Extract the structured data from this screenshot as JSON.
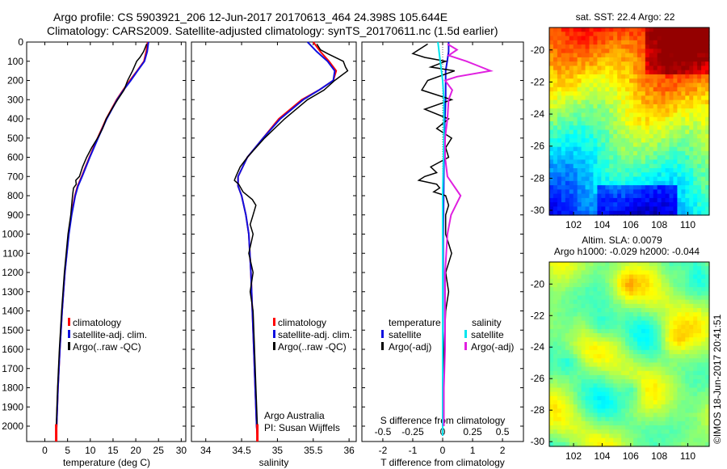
{
  "header": {
    "line1": "Argo profile: CS 5903921_206 12-Jun-2017 20170613_464 24.398S 105.644E",
    "line2": "Climatology: CARS2009. Satellite-adjusted climatology: synTS_20170611.nc (1.5d earlier)"
  },
  "colors": {
    "climatology": "#ff0000",
    "satellite": "#1010e0",
    "argo": "#000000",
    "satellite_s": "#00e5ee",
    "argo_s": "#e020e0"
  },
  "chart_data": [
    {
      "id": "temperature",
      "type": "line",
      "xlabel": "temperature (deg C)",
      "xlim": [
        -4,
        31
      ],
      "xticks": [
        0,
        5,
        10,
        15,
        20,
        25,
        30
      ],
      "ylim": [
        2080,
        0
      ],
      "yticks": [
        0,
        100,
        200,
        300,
        400,
        500,
        600,
        700,
        800,
        900,
        1000,
        1100,
        1200,
        1300,
        1400,
        1500,
        1600,
        1700,
        1800,
        1900,
        2000
      ],
      "legend": [
        "climatology",
        "satellite-adj. clim.",
        "Argo(..raw -QC)"
      ],
      "series": [
        {
          "name": "climatology",
          "color_key": "climatology",
          "depth": [
            0,
            50,
            100,
            150,
            200,
            250,
            300,
            400,
            500,
            600,
            700,
            750,
            800,
            900,
            1000,
            1200,
            1400,
            1600,
            1800,
            2000,
            2050
          ],
          "values": [
            22.6,
            22.3,
            21.8,
            20.3,
            18.7,
            17.2,
            15.8,
            13.5,
            11.6,
            9.8,
            8.1,
            7.2,
            6.6,
            5.8,
            5.2,
            4.4,
            3.8,
            3.3,
            2.9,
            2.6,
            2.5
          ]
        },
        {
          "name": "satellite-adj. clim.",
          "color_key": "satellite",
          "depth": [
            0,
            50,
            100,
            150,
            200,
            250,
            300,
            400,
            500,
            600,
            700,
            750,
            800,
            900,
            1000,
            1200,
            1400,
            1600,
            1800,
            2000,
            2050
          ],
          "values": [
            22.8,
            22.5,
            21.9,
            20.4,
            18.9,
            17.3,
            15.9,
            13.6,
            11.7,
            9.9,
            8.2,
            7.3,
            6.7,
            5.9,
            5.3,
            4.4,
            3.8,
            3.3,
            2.9,
            2.6,
            2.5
          ]
        },
        {
          "name": "Argo(..raw -QC)",
          "color_key": "argo",
          "depth": [
            10,
            50,
            80,
            100,
            150,
            200,
            250,
            300,
            350,
            400,
            450,
            500,
            550,
            600,
            650,
            700,
            720,
            740,
            760,
            800,
            900,
            1000,
            1200,
            1400,
            1600,
            1800,
            2000,
            2020
          ],
          "values": [
            22.4,
            21.7,
            20.9,
            20.2,
            19.3,
            18.2,
            17.4,
            16.0,
            14.7,
            13.5,
            12.7,
            11.6,
            10.3,
            9.2,
            8.3,
            7.6,
            6.8,
            6.9,
            6.3,
            6.1,
            5.7,
            5.1,
            4.3,
            3.7,
            3.2,
            2.8,
            2.5,
            2.5
          ]
        }
      ]
    },
    {
      "id": "salinity",
      "type": "line",
      "xlabel": "salinity",
      "xlim": [
        33.8,
        36.1
      ],
      "xticks": [
        34,
        34.5,
        35,
        35.5,
        36
      ],
      "xtick_labels": [
        "34",
        "34.5",
        "35",
        "35.5",
        "36"
      ],
      "ylim": [
        2080,
        0
      ],
      "legend": [
        "climatology",
        "satellite-adj. clim.",
        "Argo(..raw -QC)"
      ],
      "annotations": [
        "Argo Australia",
        "PI: Susan Wijffels"
      ],
      "series": [
        {
          "name": "climatology",
          "color_key": "climatology",
          "depth": [
            0,
            50,
            100,
            150,
            200,
            250,
            300,
            400,
            500,
            600,
            700,
            750,
            800,
            900,
            1000,
            1200,
            1400,
            1600,
            1800,
            2000,
            2050
          ],
          "values": [
            35.5,
            35.6,
            35.72,
            35.82,
            35.78,
            35.58,
            35.34,
            35.02,
            34.8,
            34.58,
            34.45,
            34.45,
            34.5,
            34.56,
            34.6,
            34.63,
            34.65,
            34.67,
            34.69,
            34.71,
            34.72
          ]
        },
        {
          "name": "satellite-adj. clim.",
          "color_key": "satellite",
          "depth": [
            0,
            50,
            100,
            150,
            200,
            250,
            300,
            400,
            500,
            600,
            700,
            750,
            800,
            900,
            1000,
            1200,
            1400,
            1600,
            1800,
            2000,
            2050
          ],
          "values": [
            35.42,
            35.55,
            35.7,
            35.8,
            35.78,
            35.58,
            35.36,
            35.04,
            34.8,
            34.58,
            34.45,
            34.45,
            34.5,
            34.56,
            34.6,
            34.63,
            34.65,
            34.67,
            34.69,
            34.71,
            34.72
          ]
        },
        {
          "name": "Argo(..raw -QC)",
          "color_key": "argo",
          "depth": [
            10,
            40,
            60,
            100,
            130,
            150,
            200,
            250,
            300,
            400,
            500,
            600,
            650,
            700,
            720,
            740,
            780,
            820,
            850,
            900,
            950,
            1000,
            1100,
            1200,
            1300,
            1400,
            1600,
            1800,
            2000,
            2020
          ],
          "values": [
            35.55,
            35.6,
            35.7,
            35.92,
            35.95,
            35.98,
            35.8,
            35.65,
            35.42,
            35.1,
            34.82,
            34.58,
            34.48,
            34.42,
            34.4,
            34.46,
            34.52,
            34.65,
            34.7,
            34.66,
            34.62,
            34.66,
            34.6,
            34.66,
            34.62,
            34.66,
            34.68,
            34.7,
            34.72,
            34.72
          ]
        }
      ]
    },
    {
      "id": "differences",
      "type": "line",
      "xlabel": "T difference from climatology",
      "xlabel_top": "S difference from climatology",
      "xlim": [
        -2.7,
        2.7
      ],
      "xticks": [
        -2,
        -1,
        0,
        1,
        2
      ],
      "xticks_top": [
        -0.5,
        -0.25,
        0,
        0.25,
        0.5
      ],
      "xtick_labels_top": [
        "-0.5",
        "-0.25",
        "0",
        "0.25",
        "0.5"
      ],
      "ylim": [
        2080,
        0
      ],
      "legend_titles": [
        "temperature",
        "salinity"
      ],
      "legend": [
        "satellite",
        "Argo(-adj)",
        "satellite",
        "Argo(-adj)"
      ],
      "series": [
        {
          "name": "T satellite",
          "color_key": "satellite",
          "depth": [
            0,
            50,
            100,
            150,
            200,
            300,
            500,
            1000,
            2050
          ],
          "values": [
            0.2,
            0.2,
            0.15,
            0.1,
            0.1,
            0.1,
            0.05,
            0.02,
            0.0
          ]
        },
        {
          "name": "T Argo(-adj)",
          "color_key": "argo",
          "depth": [
            10,
            40,
            60,
            80,
            100,
            130,
            150,
            200,
            250,
            300,
            350,
            400,
            450,
            500,
            550,
            600,
            650,
            680,
            700,
            720,
            740,
            760,
            780,
            800,
            850,
            900,
            1000,
            1100,
            1200,
            1300,
            1400,
            1600,
            1800,
            2000
          ],
          "values": [
            -0.5,
            -0.8,
            -1.0,
            -0.6,
            0.1,
            -0.4,
            0.4,
            -0.5,
            -0.7,
            0.3,
            -0.6,
            0.2,
            -0.2,
            0.3,
            0.1,
            0.2,
            -0.4,
            -0.2,
            -0.6,
            -0.8,
            -0.2,
            -0.1,
            -0.3,
            0.1,
            0.2,
            0.1,
            0.1,
            0.3,
            0.1,
            0.2,
            0.1,
            0.05,
            0.02,
            0.0
          ]
        },
        {
          "name": "S satellite",
          "color_key": "satellite_s",
          "depth": [
            0,
            100,
            200,
            300,
            500,
            800,
            1200,
            2050
          ],
          "values": [
            -0.04,
            -0.02,
            0.0,
            0.01,
            0.01,
            0.0,
            0.0,
            0.0
          ]
        },
        {
          "name": "S Argo(-adj)",
          "color_key": "argo_s",
          "depth": [
            10,
            40,
            70,
            100,
            120,
            150,
            180,
            200,
            250,
            300,
            400,
            500,
            600,
            700,
            800,
            900,
            1000,
            1200,
            1400,
            1600,
            1800,
            2000
          ],
          "values": [
            0.04,
            0.12,
            0.05,
            0.2,
            0.28,
            0.4,
            0.12,
            0.02,
            0.08,
            0.05,
            0.04,
            0.02,
            0.02,
            0.04,
            0.15,
            0.07,
            0.04,
            0.02,
            0.02,
            0.02,
            0.01,
            0.01
          ]
        }
      ]
    },
    {
      "id": "sst_map",
      "type": "heatmap",
      "title": "sat. SST: 22.4  Argo: 22",
      "xlim": [
        100.3,
        111.5
      ],
      "ylim": [
        -30.3,
        -18.6
      ],
      "xticks": [
        102,
        104,
        106,
        108,
        110
      ],
      "yticks": [
        -20,
        -22,
        -24,
        -26,
        -28,
        -30
      ],
      "argo_position": [
        105.644,
        -24.398
      ]
    },
    {
      "id": "sla_map",
      "type": "heatmap",
      "title": "Altim. SLA: 0.0079",
      "subtitle": "Argo h1000: -0.029  h2000: -0.044",
      "xlim": [
        100.3,
        111.5
      ],
      "ylim": [
        -30.3,
        -18.6
      ],
      "xticks": [
        102,
        104,
        106,
        108,
        110
      ],
      "yticks": [
        -20,
        -22,
        -24,
        -26,
        -28,
        -30
      ]
    }
  ],
  "footer": {
    "stamp": "©IMOS 18-Jun-2017 20:41:51"
  }
}
